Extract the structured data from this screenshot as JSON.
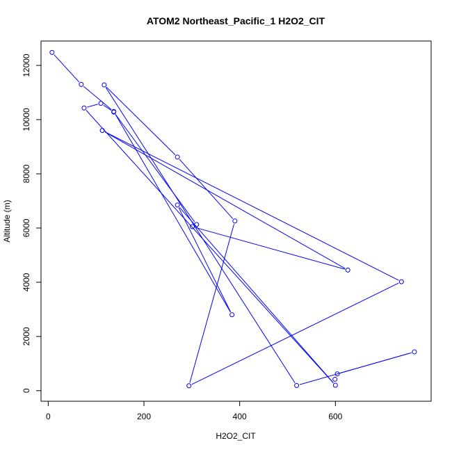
{
  "chart_data": {
    "type": "line",
    "title": "ATOM2 Northeast_Pacific_1 H2O2_CIT",
    "xlabel": "H2O2_CIT",
    "ylabel": "Altitude (m)",
    "xlim": [
      -15,
      800
    ],
    "ylim": [
      -390,
      12900
    ],
    "xticks": [
      0,
      200,
      400,
      600
    ],
    "yticks": [
      0,
      2000,
      4000,
      6000,
      8000,
      10000,
      12000
    ],
    "grid": false,
    "colors": {
      "series": "#0000ff"
    },
    "series": [
      {
        "x": [
          8,
          69,
          137,
          384,
          270,
          600,
          75,
          110,
          137,
          310,
          301,
          626,
          113,
          738,
          294,
          390,
          270,
          117,
          519,
          765,
          604,
          599
        ],
        "y": [
          12480,
          11300,
          10300,
          2800,
          6850,
          200,
          10430,
          10600,
          10280,
          6130,
          6050,
          4450,
          9600,
          4020,
          180,
          6260,
          8620,
          11280,
          190,
          1430,
          620,
          420
        ]
      }
    ]
  }
}
